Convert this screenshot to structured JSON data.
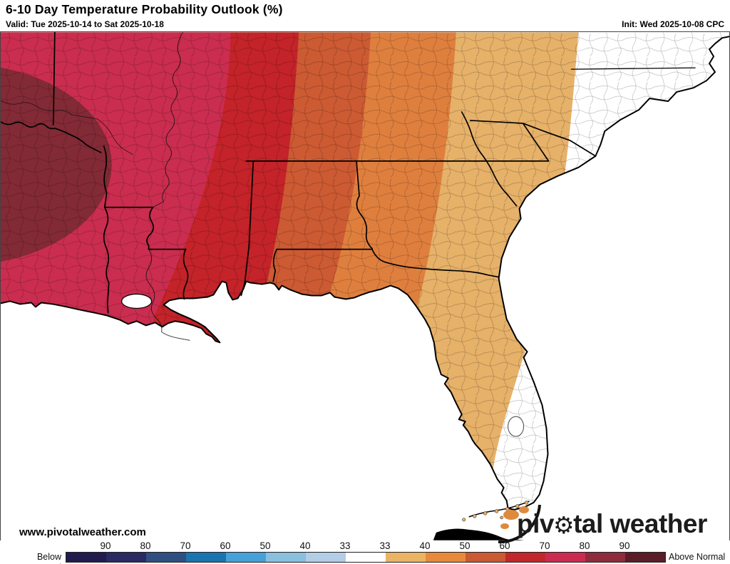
{
  "header": {
    "title": "6-10 Day Temperature Probability Outlook (%)",
    "valid": "Valid: Tue 2025-10-14 to Sat 2025-10-18",
    "init": "Init: Wed 2025-10-08 CPC"
  },
  "map": {
    "watermark": "www.pivotalweather.com",
    "logo": {
      "pre": "piv",
      "gear": "⚙",
      "post": "tal weather"
    },
    "ocean_color": "#ffffff",
    "band_colors": {
      "above_90": "#822a36",
      "above_80_90": "#ca2d4f",
      "above_60_70_band_70_80": "#ca2d4f",
      "above_70": "#ca2d4f",
      "above_60": "#c32329",
      "above_50": "#cc5a33",
      "above_40": "#df7f3e",
      "above_33": "#e6b169",
      "normal_below_33": "#ffffff"
    }
  },
  "legend": {
    "below_label": "Below Normal",
    "above_label": "Above Normal",
    "x": 92,
    "seg": 56,
    "ticks": [
      90,
      80,
      70,
      60,
      50,
      40,
      33,
      33,
      40,
      50,
      60,
      70,
      80,
      90
    ],
    "colors": [
      "#211c4d",
      "#2a2a62",
      "#2f4f80",
      "#1a74af",
      "#45a1d8",
      "#8abfe0",
      "#b3cde7",
      "#ffffff",
      "#eab464",
      "#e78a3b",
      "#c95a33",
      "#c2272b",
      "#cb2b50",
      "#8e2c3b",
      "#5a1d27"
    ]
  }
}
